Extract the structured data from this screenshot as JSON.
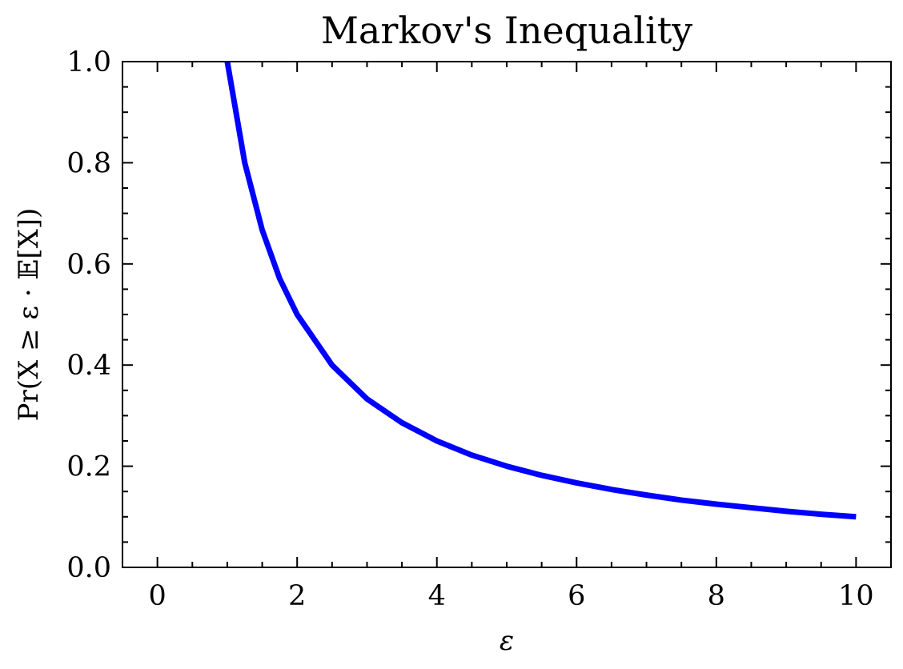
{
  "chart_data": {
    "type": "line",
    "title": "Markov's Inequality",
    "xlabel": "ε",
    "ylabel": "Pr(X ≥ ε · 𝔼[X])",
    "xlim": [
      -0.5,
      10.5
    ],
    "ylim": [
      0.0,
      1.0
    ],
    "x_ticks": [
      0,
      2,
      4,
      6,
      8,
      10
    ],
    "x_tick_labels": [
      "0",
      "2",
      "4",
      "6",
      "8",
      "10"
    ],
    "x_minor_step": 0.5,
    "y_ticks": [
      0.0,
      0.2,
      0.4,
      0.6,
      0.8,
      1.0
    ],
    "y_tick_labels": [
      "0.0",
      "0.2",
      "0.4",
      "0.6",
      "0.8",
      "1.0"
    ],
    "y_minor_step": 0.05,
    "grid": false,
    "series": [
      {
        "color": "#0000ff",
        "x": [
          1.0,
          1.25,
          1.5,
          1.75,
          2.0,
          2.5,
          3.0,
          3.5,
          4.0,
          4.5,
          5.0,
          5.5,
          6.0,
          6.5,
          7.0,
          7.5,
          8.0,
          8.5,
          9.0,
          9.5,
          10.0
        ],
        "y": [
          1.0,
          0.8,
          0.667,
          0.571,
          0.5,
          0.4,
          0.333,
          0.286,
          0.25,
          0.222,
          0.2,
          0.182,
          0.167,
          0.154,
          0.143,
          0.133,
          0.125,
          0.118,
          0.111,
          0.105,
          0.1
        ]
      }
    ]
  }
}
